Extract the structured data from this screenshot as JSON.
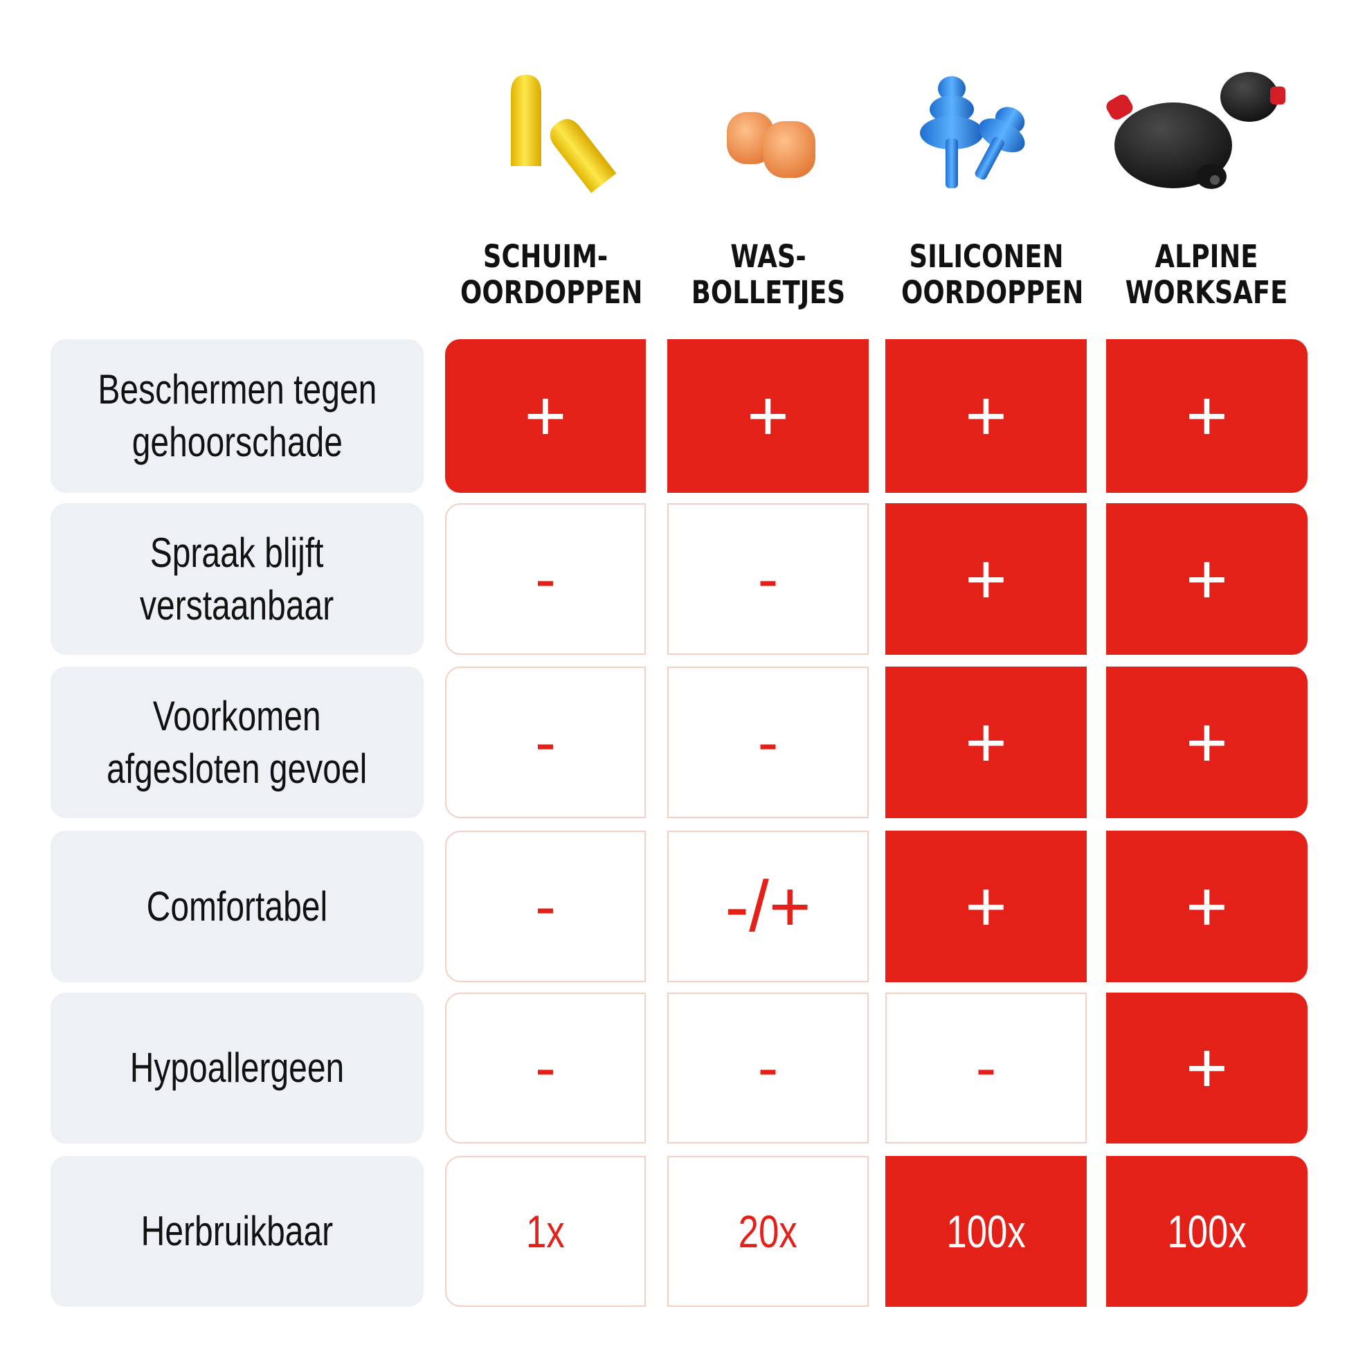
{
  "columns": [
    {
      "line1": "SCHUIM-",
      "line2": "OORDOPPEN",
      "image": "yellow-foam-earplugs"
    },
    {
      "line1": "WAS-",
      "line2": "BOLLETJES",
      "image": "orange-wax-balls"
    },
    {
      "line1": "SILICONEN",
      "line2": "OORDOPPEN",
      "image": "blue-silicone-earplugs"
    },
    {
      "line1": "ALPINE",
      "line2": "WORKSAFE",
      "image": "black-alpine-earplugs"
    }
  ],
  "rows": [
    {
      "line1": "Beschermen tegen",
      "line2": "gehoorschade",
      "cells": [
        "+",
        "+",
        "+",
        "+"
      ],
      "active": [
        true,
        true,
        true,
        true
      ]
    },
    {
      "line1": "Spraak blijft",
      "line2": "verstaanbaar",
      "cells": [
        "-",
        "-",
        "+",
        "+"
      ],
      "active": [
        false,
        false,
        true,
        true
      ]
    },
    {
      "line1": "Voorkomen",
      "line2": "afgesloten gevoel",
      "cells": [
        "-",
        "-",
        "+",
        "+"
      ],
      "active": [
        false,
        false,
        true,
        true
      ]
    },
    {
      "line1": "Comfortabel",
      "line2": "",
      "cells": [
        "-",
        "-/+",
        "+",
        "+"
      ],
      "active": [
        false,
        false,
        true,
        true
      ]
    },
    {
      "line1": "Hypoallergeen",
      "line2": "",
      "cells": [
        "-",
        "-",
        "-",
        "+"
      ],
      "active": [
        false,
        false,
        false,
        true
      ]
    },
    {
      "line1": "Herbruikbaar",
      "line2": "",
      "cells": [
        "1x",
        "20x",
        "100x",
        "100x"
      ],
      "active": [
        false,
        false,
        true,
        true
      ]
    }
  ],
  "colors": {
    "accent": "#e32119",
    "label_bg": "#edf0f5",
    "off_border": "#f4cfc3"
  }
}
